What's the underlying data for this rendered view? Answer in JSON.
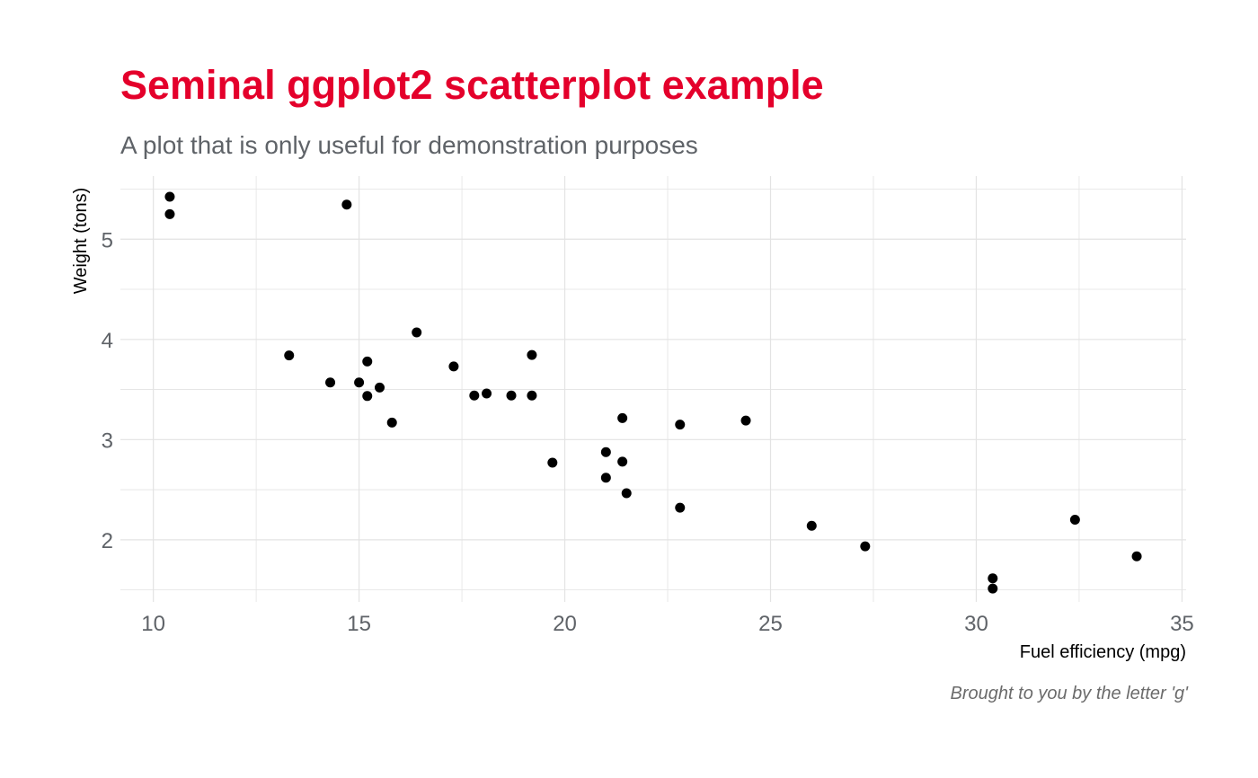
{
  "chart_data": {
    "type": "scatter",
    "title": "Seminal ggplot2 scatterplot example",
    "subtitle": "A plot that is only useful for demonstration purposes",
    "caption": "Brought to you by the letter 'g'",
    "xlabel": "Fuel efficiency (mpg)",
    "ylabel": "Weight (tons)",
    "xlim": [
      9.2,
      35.1
    ],
    "ylim": [
      1.38,
      5.63
    ],
    "xticks": [
      10,
      15,
      20,
      25,
      30,
      35
    ],
    "yticks": [
      2,
      3,
      4,
      5
    ],
    "grid": true,
    "colors": {
      "title": "#e4002b",
      "subtitle": "#5f6368",
      "ticks": "#5f6368",
      "grid": "#e3e3e3",
      "points": "#000000",
      "caption": "#6b6b6b"
    },
    "points": [
      {
        "x": 21.0,
        "y": 2.62
      },
      {
        "x": 21.0,
        "y": 2.875
      },
      {
        "x": 22.8,
        "y": 2.32
      },
      {
        "x": 21.4,
        "y": 3.215
      },
      {
        "x": 18.7,
        "y": 3.44
      },
      {
        "x": 18.1,
        "y": 3.46
      },
      {
        "x": 14.3,
        "y": 3.57
      },
      {
        "x": 24.4,
        "y": 3.19
      },
      {
        "x": 22.8,
        "y": 3.15
      },
      {
        "x": 19.2,
        "y": 3.44
      },
      {
        "x": 17.8,
        "y": 3.44
      },
      {
        "x": 16.4,
        "y": 4.07
      },
      {
        "x": 17.3,
        "y": 3.73
      },
      {
        "x": 15.2,
        "y": 3.78
      },
      {
        "x": 10.4,
        "y": 5.25
      },
      {
        "x": 10.4,
        "y": 5.424
      },
      {
        "x": 14.7,
        "y": 5.345
      },
      {
        "x": 32.4,
        "y": 2.2
      },
      {
        "x": 30.4,
        "y": 1.615
      },
      {
        "x": 33.9,
        "y": 1.835
      },
      {
        "x": 21.5,
        "y": 2.465
      },
      {
        "x": 15.5,
        "y": 3.52
      },
      {
        "x": 15.2,
        "y": 3.435
      },
      {
        "x": 13.3,
        "y": 3.84
      },
      {
        "x": 19.2,
        "y": 3.845
      },
      {
        "x": 27.3,
        "y": 1.935
      },
      {
        "x": 26.0,
        "y": 2.14
      },
      {
        "x": 30.4,
        "y": 1.513
      },
      {
        "x": 15.8,
        "y": 3.17
      },
      {
        "x": 19.7,
        "y": 2.77
      },
      {
        "x": 15.0,
        "y": 3.57
      },
      {
        "x": 21.4,
        "y": 2.78
      }
    ]
  }
}
